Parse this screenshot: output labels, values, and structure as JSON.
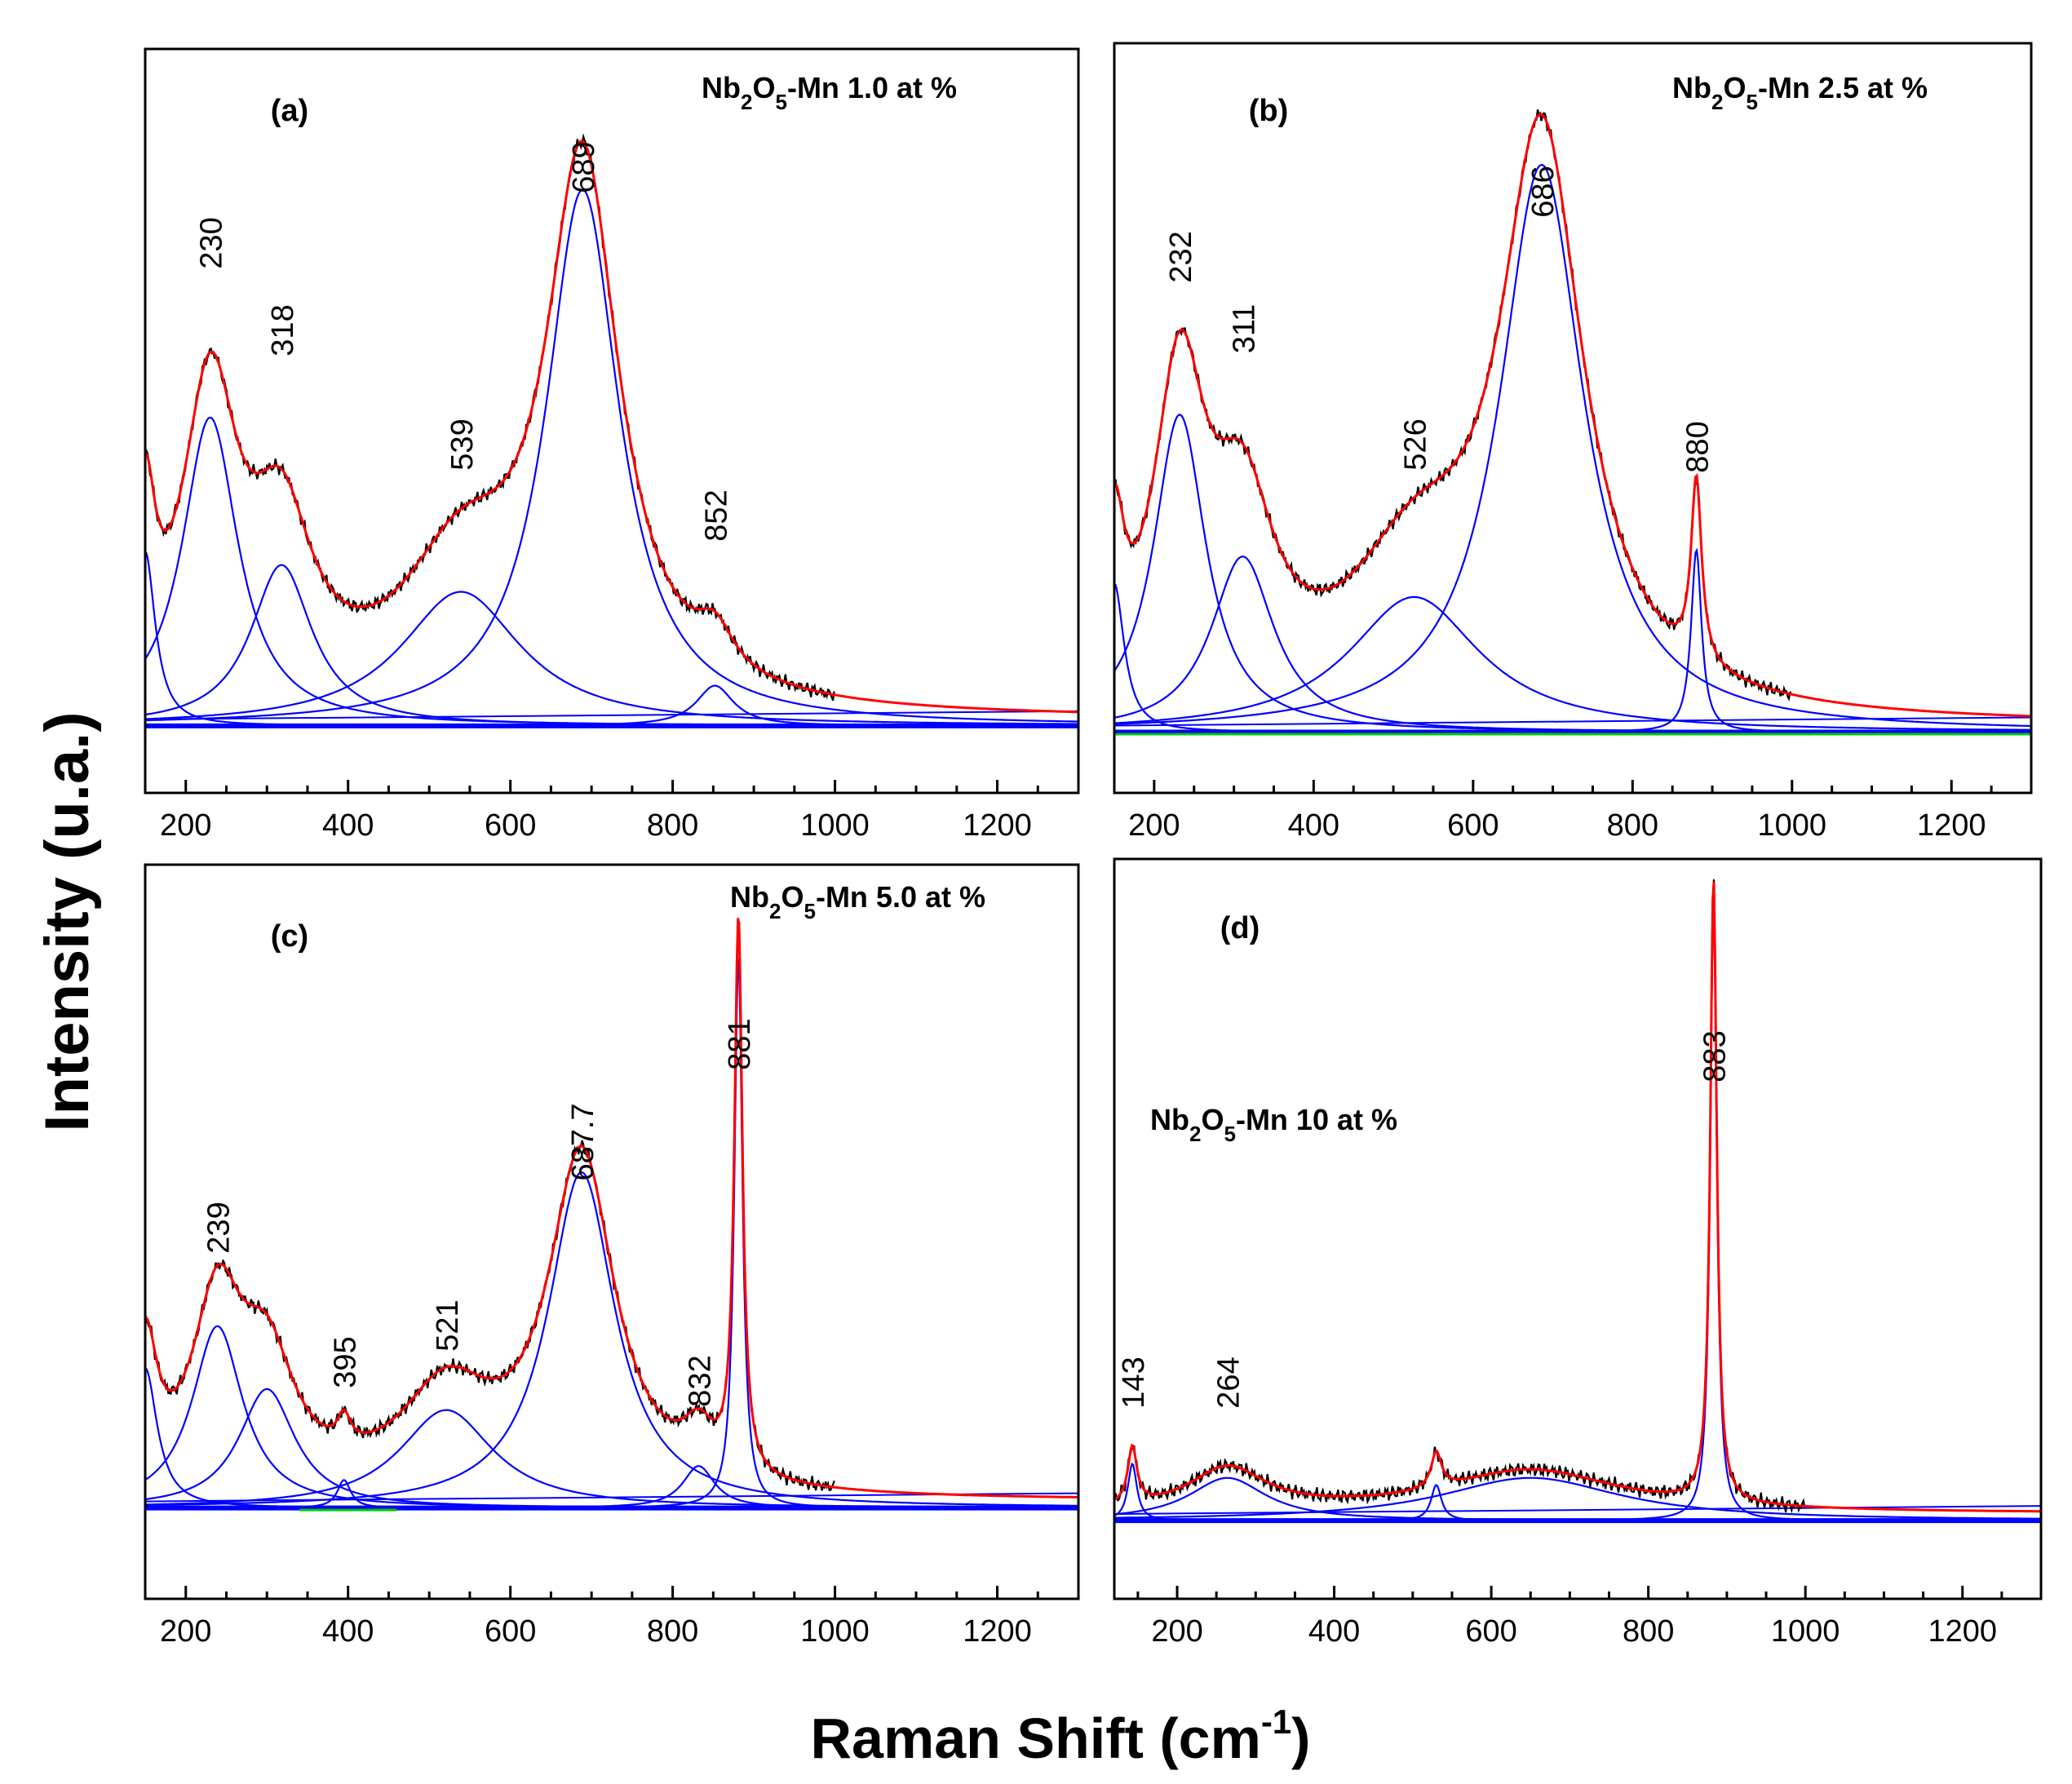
{
  "xlabel_main": "Raman Shift (cm",
  "xlabel_sup": "-1",
  "xlabel_end": ")",
  "ylabel": "Intensity (u.a.)",
  "colors": {
    "experimental": "#000000",
    "fit": "#ff0000",
    "components": "#0000ff",
    "baseline": "#00cc00"
  },
  "chart_data": [
    {
      "type": "line",
      "tag": "(a)",
      "sample": {
        "prefix": "Nb",
        "sub1": "2",
        "mid": "O",
        "sub2": "5",
        "suffix": "-Mn 1.0 at %"
      },
      "xlim": [
        150,
        1300
      ],
      "xticks": [
        "200",
        "400",
        "600",
        "800",
        "1000",
        "1200"
      ],
      "peaks": [
        {
          "label": "230",
          "x": 230
        },
        {
          "label": "318",
          "x": 318
        },
        {
          "label": "539",
          "x": 539
        },
        {
          "label": "689",
          "x": 689
        },
        {
          "label": "852",
          "x": 852
        }
      ],
      "baseline": 0.06,
      "ylim": [
        -0.04,
        1.07
      ],
      "components": [
        [
          150,
          0.26,
          15
        ],
        [
          230,
          0.46,
          42
        ],
        [
          318,
          0.24,
          46
        ],
        [
          539,
          0.2,
          90
        ],
        [
          689,
          0.8,
          55
        ],
        [
          852,
          0.06,
          28
        ]
      ],
      "has_green": false
    },
    {
      "type": "line",
      "tag": "(b)",
      "sample": {
        "prefix": "Nb",
        "sub1": "2",
        "mid": "O",
        "sub2": "5",
        "suffix": "-Mn 2.5 at %"
      },
      "xlim": [
        150,
        1300
      ],
      "xticks": [
        "200",
        "400",
        "600",
        "800",
        "1000",
        "1200"
      ],
      "peaks": [
        {
          "label": "232",
          "x": 232
        },
        {
          "label": "311",
          "x": 311
        },
        {
          "label": "526",
          "x": 526
        },
        {
          "label": "686",
          "x": 686
        },
        {
          "label": "880",
          "x": 880
        }
      ],
      "baseline": 0.05,
      "ylim": [
        -0.04,
        1.07
      ],
      "components": [
        [
          150,
          0.22,
          15
        ],
        [
          232,
          0.47,
          40
        ],
        [
          311,
          0.26,
          48
        ],
        [
          526,
          0.2,
          100
        ],
        [
          686,
          0.84,
          64
        ],
        [
          880,
          0.27,
          8
        ]
      ],
      "has_green": true
    },
    {
      "type": "line",
      "tag": "(c)",
      "sample": {
        "prefix": "Nb",
        "sub1": "2",
        "mid": "O",
        "sub2": "5",
        "suffix": "-Mn 5.0 at %"
      },
      "xlim": [
        150,
        1300
      ],
      "xticks": [
        "200",
        "400",
        "600",
        "800",
        "1000",
        "1200"
      ],
      "peaks": [
        {
          "label": "239",
          "x": 239
        },
        {
          "label": "395",
          "x": 395
        },
        {
          "label": "521",
          "x": 521
        },
        {
          "label": "687.7",
          "x": 687.7
        },
        {
          "label": "832",
          "x": 832
        },
        {
          "label": "881",
          "x": 881
        }
      ],
      "baseline": 0.1,
      "ylim": [
        -0.03,
        1.02
      ],
      "components": [
        [
          150,
          0.2,
          18
        ],
        [
          239,
          0.26,
          38
        ],
        [
          300,
          0.17,
          42
        ],
        [
          395,
          0.04,
          10
        ],
        [
          521,
          0.14,
          70
        ],
        [
          687.7,
          0.48,
          50
        ],
        [
          832,
          0.06,
          24
        ],
        [
          881,
          0.79,
          6
        ]
      ],
      "has_green": true
    },
    {
      "type": "line",
      "tag": "(d)",
      "sample": {
        "prefix": "Nb",
        "sub1": "2",
        "mid": "O",
        "sub2": "5",
        "suffix": "-Mn 10 at %"
      },
      "xlim": [
        120,
        1300
      ],
      "xticks": [
        "200",
        "400",
        "600",
        "800",
        "1000",
        "1200"
      ],
      "peaks": [
        {
          "label": "143",
          "x": 143
        },
        {
          "label": "264",
          "x": 264
        },
        {
          "label": "883",
          "x": 883
        }
      ],
      "baseline": 0.09,
      "ylim": [
        -0.02,
        1.02
      ],
      "components": [
        [
          143,
          0.08,
          7
        ],
        [
          264,
          0.06,
          60
        ],
        [
          530,
          0.05,
          8
        ],
        [
          650,
          0.06,
          140
        ],
        [
          883,
          0.88,
          5
        ]
      ],
      "has_green": false
    }
  ]
}
